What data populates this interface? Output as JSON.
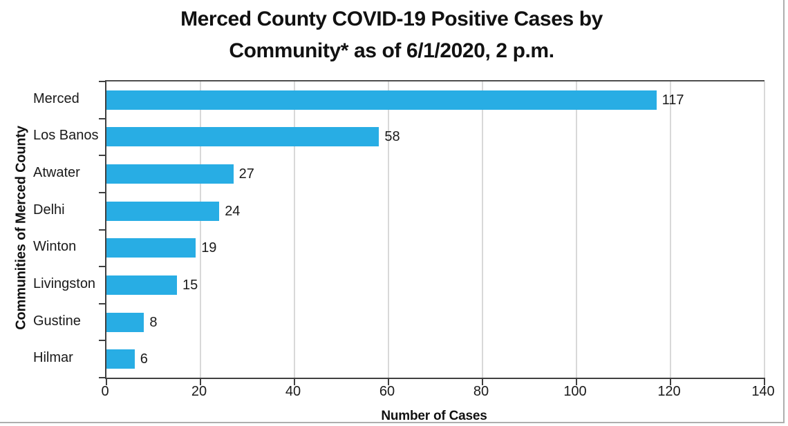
{
  "page": {
    "background": "#ffffff",
    "edge_border_color": "#aeaeae"
  },
  "chart_data": {
    "type": "bar",
    "orientation": "horizontal",
    "title": "Merced County COVID-19 Positive Cases by Community* as of 6/1/2020, 2 p.m.",
    "title_lines": [
      "Merced County COVID-19 Positive Cases by",
      "Community* as of 6/1/2020, 2 p.m."
    ],
    "categories": [
      "Merced",
      "Los Banos",
      "Atwater",
      "Delhi",
      "Winton",
      "Livingston",
      "Gustine",
      "Hilmar"
    ],
    "values": [
      117,
      58,
      27,
      24,
      19,
      15,
      8,
      6
    ],
    "data_labels": [
      117,
      58,
      27,
      24,
      19,
      15,
      8,
      6
    ],
    "xlabel": "Number of Cases",
    "ylabel": "Communities of Merced County",
    "xlim": [
      0,
      140
    ],
    "xticks": [
      0,
      20,
      40,
      60,
      80,
      100,
      120,
      140
    ],
    "grid": "vertical",
    "legend": false,
    "bar_color": "#28ade4",
    "axis_color": "#3f3f3f",
    "gridline_color": "#d8d8d8",
    "text_color": "#1a1a1a"
  }
}
